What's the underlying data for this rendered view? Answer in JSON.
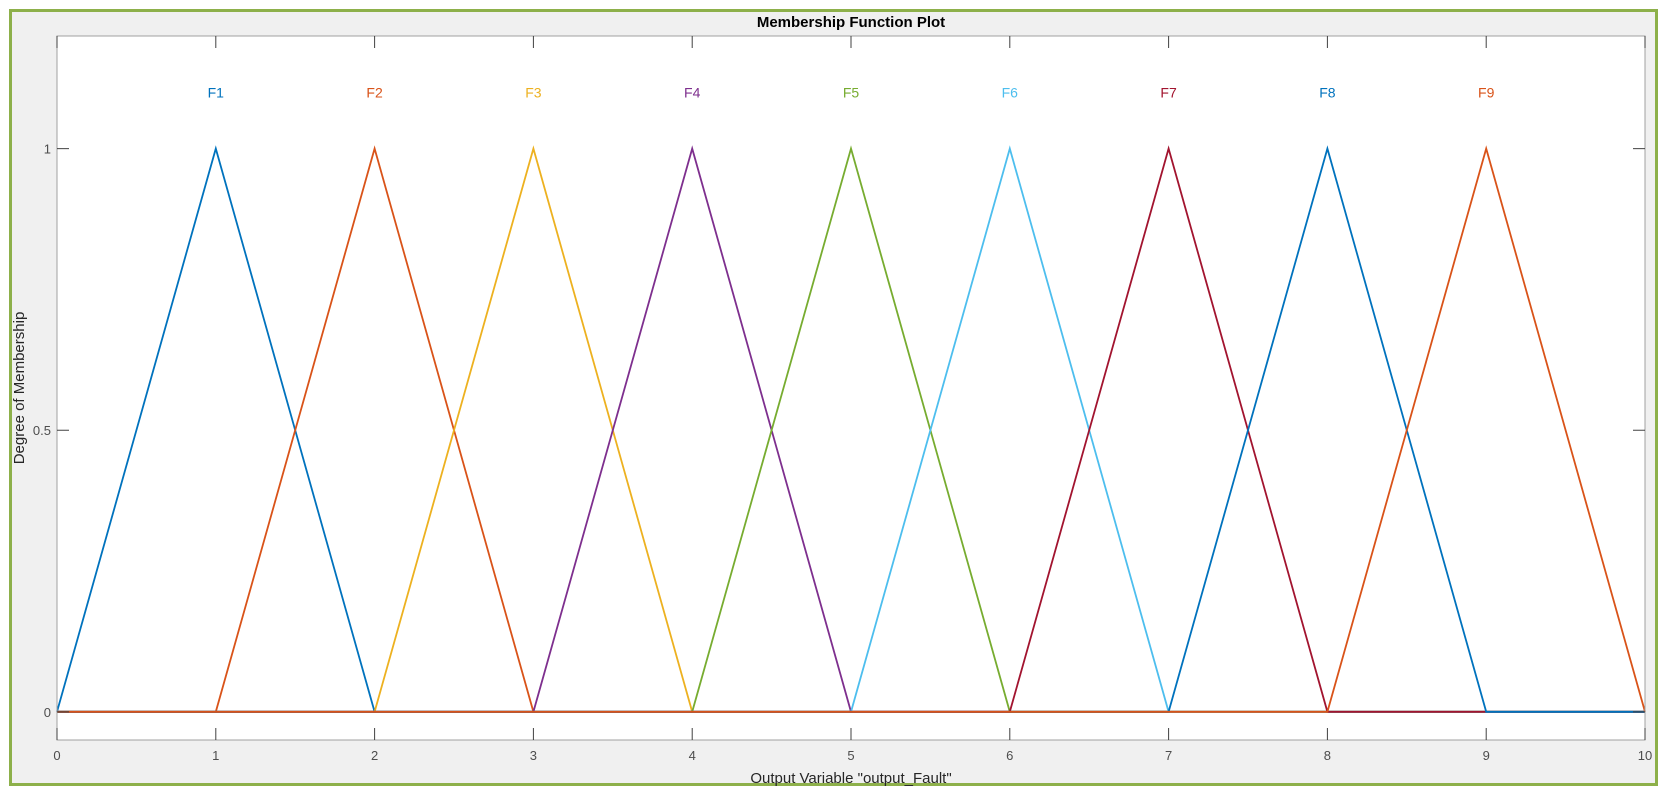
{
  "window": {
    "title": "Membership Function Plot"
  },
  "colors": {
    "frame_border": "#8db04a",
    "background": "#f0f0f0",
    "axes_bg": "#ffffff",
    "axes_line": "#262626",
    "grid": "#e6e6e6"
  },
  "chart_data": {
    "type": "line",
    "title": "Membership Function Plot",
    "xlabel": "Output Variable \"output_Fault\"",
    "ylabel": "Degree of Membership",
    "xlim": [
      0,
      10
    ],
    "ylim": [
      -0.05,
      1.2
    ],
    "xticks": [
      0,
      1,
      2,
      3,
      4,
      5,
      6,
      7,
      8,
      9,
      10
    ],
    "xtick_labels": [
      "0",
      "1",
      "2",
      "3",
      "4",
      "5",
      "6",
      "7",
      "8",
      "9",
      "10"
    ],
    "yticks": [
      0,
      0.5,
      1
    ],
    "ytick_labels": [
      "0",
      "0.5",
      "1"
    ],
    "grid": false,
    "label_y": 1.1,
    "series": [
      {
        "name": "F1",
        "color": "#0072bd",
        "x": [
          0,
          1,
          2,
          10
        ],
        "y": [
          0,
          1,
          0,
          0
        ]
      },
      {
        "name": "F2",
        "color": "#d95319",
        "x": [
          0,
          1,
          2,
          3,
          10
        ],
        "y": [
          0,
          0,
          1,
          0,
          0
        ]
      },
      {
        "name": "F3",
        "color": "#edb120",
        "x": [
          0,
          2,
          3,
          4,
          10
        ],
        "y": [
          0,
          0,
          1,
          0,
          0
        ]
      },
      {
        "name": "F4",
        "color": "#7e2f8e",
        "x": [
          0,
          3,
          4,
          5,
          10
        ],
        "y": [
          0,
          0,
          1,
          0,
          0
        ]
      },
      {
        "name": "F5",
        "color": "#77ac30",
        "x": [
          0,
          4,
          5,
          6,
          10
        ],
        "y": [
          0,
          0,
          1,
          0,
          0
        ]
      },
      {
        "name": "F6",
        "color": "#4dbeee",
        "x": [
          0,
          5,
          6,
          7,
          10
        ],
        "y": [
          0,
          0,
          1,
          0,
          0
        ]
      },
      {
        "name": "F7",
        "color": "#a2142f",
        "x": [
          0,
          6,
          7,
          8,
          10
        ],
        "y": [
          0,
          0,
          1,
          0,
          0
        ]
      },
      {
        "name": "F8",
        "color": "#0072bd",
        "x": [
          0,
          7,
          8,
          9,
          10
        ],
        "y": [
          0,
          0,
          1,
          0,
          0
        ]
      },
      {
        "name": "F9",
        "color": "#d95319",
        "x": [
          0,
          8,
          9,
          10
        ],
        "y": [
          0,
          0,
          1,
          0
        ]
      }
    ]
  }
}
